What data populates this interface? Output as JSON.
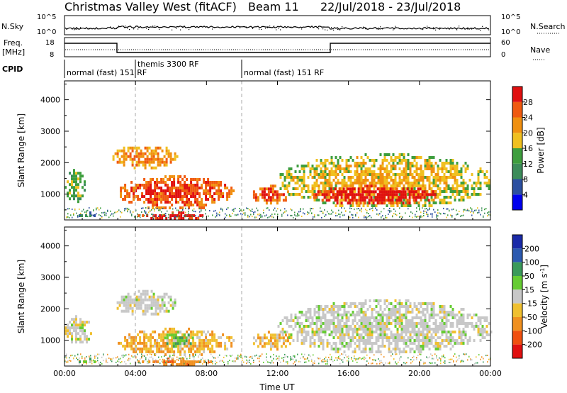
{
  "title": {
    "site": "Christmas Valley West (fitACF)",
    "beam": "Beam 11",
    "dates": "22/Jul/2018 - 23/Jul/2018"
  },
  "labels": {
    "nsky": "N.Sky",
    "nsearch": "N.Search",
    "freq_line1": "Freq.",
    "freq_line2": "[MHz]",
    "nave": "Nave",
    "cpid": "CPID",
    "slant_range": "Slant Range [km]",
    "power_label": "Power [dB]",
    "velocity_label": "Velocity [m s",
    "velocity_exp": "-1",
    "velocity_close": "]",
    "time_label": "Time UT"
  },
  "noise_panel": {
    "left_ticks": [
      "10^5",
      "10^0"
    ],
    "right_ticks": [
      "10^5",
      "10^0"
    ]
  },
  "freq_panel": {
    "left_ticks": [
      "18",
      "8"
    ],
    "right_ticks": [
      "60",
      "0"
    ]
  },
  "cpid_segments": [
    {
      "label": "normal (fast) 151 RF",
      "start_hr": 0
    },
    {
      "label": "themis 3300 RF",
      "start_hr": 4
    },
    {
      "label": "normal (fast) 151 RF",
      "start_hr": 10
    }
  ],
  "colorbars": {
    "power": {
      "ticks": [
        "4",
        "8",
        "12",
        "16",
        "20",
        "24",
        "28"
      ],
      "colors": [
        "#0000ee",
        "#2c4fa0",
        "#3c8c5a",
        "#3e9e3e",
        "#f0c020",
        "#f09010",
        "#f05a10",
        "#e01010"
      ]
    },
    "velocity": {
      "ticks": [
        "200",
        "100",
        "50",
        "15",
        "-15",
        "-50",
        "-100",
        "-200"
      ],
      "colors": [
        "#1a2aa8",
        "#2c5ab0",
        "#3a9a5a",
        "#66cc33",
        "#c8c8c8",
        "#f0c030",
        "#f09020",
        "#f05010",
        "#e01010"
      ]
    }
  },
  "chart_data": [
    {
      "type": "heatmap",
      "title": "Power [dB]",
      "xlabel": "Time UT",
      "ylabel": "Slant Range [km]",
      "x_ticks": [
        "00:00",
        "04:00",
        "08:00",
        "12:00",
        "16:00",
        "20:00",
        "00:00"
      ],
      "xlim_hours": [
        0,
        24
      ],
      "ylim": [
        180,
        4600
      ],
      "y_ticks": [
        1000,
        2000,
        3000,
        4000
      ],
      "colorbar_ticks": [
        4,
        8,
        12,
        16,
        20,
        24,
        28
      ],
      "echo_regions": [
        {
          "t0": 0.0,
          "t1": 1.1,
          "r0": 750,
          "r1": 1800,
          "power": 12
        },
        {
          "t0": 0.8,
          "t1": 1.8,
          "r0": 280,
          "r1": 450,
          "power": 8
        },
        {
          "t0": 2.7,
          "t1": 6.3,
          "r0": 1850,
          "r1": 2600,
          "power": 20
        },
        {
          "t0": 3.0,
          "t1": 9.5,
          "r0": 550,
          "r1": 1600,
          "power": 24
        },
        {
          "t0": 4.0,
          "t1": 8.5,
          "r0": 250,
          "r1": 450,
          "power": 28
        },
        {
          "t0": 10.5,
          "t1": 12.7,
          "r0": 750,
          "r1": 1300,
          "power": 24
        },
        {
          "t0": 12.0,
          "t1": 24.0,
          "r0": 600,
          "r1": 2300,
          "power": 16
        },
        {
          "t0": 14.0,
          "t1": 21.0,
          "r0": 700,
          "r1": 1300,
          "power": 28
        }
      ]
    },
    {
      "type": "heatmap",
      "title": "Velocity [m s-1]",
      "xlabel": "Time UT",
      "ylabel": "Slant Range [km]",
      "x_ticks": [
        "00:00",
        "04:00",
        "08:00",
        "12:00",
        "16:00",
        "20:00",
        "00:00"
      ],
      "xlim_hours": [
        0,
        24
      ],
      "ylim": [
        180,
        4600
      ],
      "y_ticks": [
        1000,
        2000,
        3000,
        4000
      ],
      "colorbar_ticks": [
        200,
        100,
        50,
        15,
        -15,
        -50,
        -100,
        -200
      ],
      "echo_regions": [
        {
          "t0": 0.0,
          "t1": 1.5,
          "r0": 900,
          "r1": 1800,
          "velocity": 0
        },
        {
          "t0": 0.8,
          "t1": 1.8,
          "r0": 280,
          "r1": 450,
          "velocity": 30
        },
        {
          "t0": 2.7,
          "t1": 6.3,
          "r0": 1850,
          "r1": 2600,
          "velocity": 0
        },
        {
          "t0": 3.0,
          "t1": 9.5,
          "r0": 550,
          "r1": 1400,
          "velocity": -30
        },
        {
          "t0": 5.5,
          "t1": 7.2,
          "r0": 800,
          "r1": 1300,
          "velocity": 30
        },
        {
          "t0": 4.0,
          "t1": 8.5,
          "r0": 250,
          "r1": 450,
          "velocity": -60
        },
        {
          "t0": 10.5,
          "t1": 12.7,
          "r0": 750,
          "r1": 1300,
          "velocity": -30
        },
        {
          "t0": 12.0,
          "t1": 24.0,
          "r0": 600,
          "r1": 2300,
          "velocity": 0
        }
      ]
    }
  ]
}
